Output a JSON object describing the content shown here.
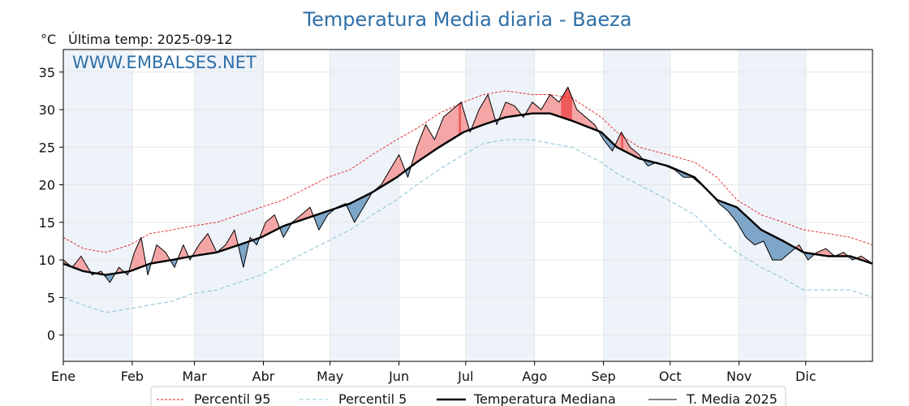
{
  "chart_data": {
    "type": "line",
    "title": "Temperatura Media diaria - Baeza",
    "ylabel": "°C",
    "subtitle": "Última temp: 2025-09-12",
    "watermark": "WWW.EMBALSES.NET",
    "ylim": [
      -3.5,
      38
    ],
    "yticks": [
      "0",
      "5",
      "10",
      "15",
      "20",
      "25",
      "30",
      "35"
    ],
    "grid": true,
    "months": [
      "Ene",
      "Feb",
      "Mar",
      "Abr",
      "May",
      "Jun",
      "Jul",
      "Ago",
      "Sep",
      "Oct",
      "Nov",
      "Dic"
    ],
    "legend_placement": "bottom-center",
    "colors": {
      "p95": "#e31a1c",
      "p5": "#8fc6d8",
      "median": "#000000",
      "t2025": "#000000",
      "above_fill": "#f4a6a6",
      "above_fill_strong": "#ef5a5a",
      "below_fill": "#7ea6c8",
      "below_fill_strong": "#2f74ae",
      "band_shade": "#eef3f9"
    },
    "series": [
      {
        "name": "Percentil 95",
        "key": "p95",
        "points": [
          [
            1,
            13
          ],
          [
            10,
            11.5
          ],
          [
            20,
            11
          ],
          [
            31,
            12
          ],
          [
            40,
            13.5
          ],
          [
            50,
            14
          ],
          [
            59,
            14.5
          ],
          [
            70,
            15
          ],
          [
            80,
            16
          ],
          [
            90,
            17
          ],
          [
            100,
            18
          ],
          [
            110,
            19.5
          ],
          [
            120,
            21
          ],
          [
            130,
            22
          ],
          [
            140,
            24
          ],
          [
            151,
            26
          ],
          [
            160,
            27.5
          ],
          [
            170,
            29.5
          ],
          [
            181,
            31
          ],
          [
            190,
            32
          ],
          [
            200,
            32.5
          ],
          [
            212,
            32
          ],
          [
            220,
            32
          ],
          [
            230,
            31.5
          ],
          [
            243,
            29
          ],
          [
            250,
            27
          ],
          [
            260,
            25
          ],
          [
            273,
            24
          ],
          [
            285,
            23
          ],
          [
            295,
            21
          ],
          [
            304,
            18
          ],
          [
            315,
            16
          ],
          [
            325,
            15
          ],
          [
            334,
            14
          ],
          [
            345,
            13.5
          ],
          [
            355,
            13
          ],
          [
            365,
            12
          ]
        ]
      },
      {
        "name": "Percentil 5",
        "key": "p5",
        "points": [
          [
            1,
            5
          ],
          [
            10,
            4
          ],
          [
            20,
            3
          ],
          [
            31,
            3.5
          ],
          [
            40,
            4
          ],
          [
            50,
            4.5
          ],
          [
            59,
            5.5
          ],
          [
            70,
            6
          ],
          [
            80,
            7
          ],
          [
            90,
            8
          ],
          [
            100,
            9.5
          ],
          [
            110,
            11
          ],
          [
            120,
            12.5
          ],
          [
            130,
            14
          ],
          [
            140,
            16
          ],
          [
            151,
            18
          ],
          [
            160,
            20
          ],
          [
            170,
            22
          ],
          [
            181,
            24
          ],
          [
            190,
            25.5
          ],
          [
            200,
            26
          ],
          [
            212,
            26
          ],
          [
            220,
            25.5
          ],
          [
            230,
            25
          ],
          [
            243,
            23
          ],
          [
            250,
            21.5
          ],
          [
            260,
            20
          ],
          [
            273,
            18
          ],
          [
            285,
            16
          ],
          [
            295,
            13
          ],
          [
            304,
            11
          ],
          [
            315,
            9
          ],
          [
            325,
            7.5
          ],
          [
            334,
            6
          ],
          [
            345,
            6
          ],
          [
            355,
            6
          ],
          [
            365,
            5
          ]
        ]
      },
      {
        "name": "Temperatura Mediana",
        "key": "median",
        "points": [
          [
            1,
            9.5
          ],
          [
            10,
            8.5
          ],
          [
            20,
            8
          ],
          [
            31,
            8.5
          ],
          [
            40,
            9.5
          ],
          [
            50,
            10
          ],
          [
            59,
            10.5
          ],
          [
            70,
            11
          ],
          [
            80,
            12
          ],
          [
            90,
            13
          ],
          [
            100,
            14.5
          ],
          [
            110,
            15.5
          ],
          [
            120,
            16.5
          ],
          [
            130,
            17.5
          ],
          [
            140,
            19
          ],
          [
            151,
            21
          ],
          [
            160,
            23
          ],
          [
            170,
            25
          ],
          [
            181,
            27
          ],
          [
            190,
            28
          ],
          [
            200,
            29
          ],
          [
            212,
            29.5
          ],
          [
            220,
            29.5
          ],
          [
            230,
            28.5
          ],
          [
            243,
            27
          ],
          [
            250,
            25
          ],
          [
            260,
            23.5
          ],
          [
            273,
            22.5
          ],
          [
            285,
            21
          ],
          [
            295,
            18
          ],
          [
            304,
            17
          ],
          [
            315,
            14
          ],
          [
            325,
            12.5
          ],
          [
            334,
            11
          ],
          [
            345,
            10.5
          ],
          [
            355,
            10.5
          ],
          [
            365,
            9.5
          ]
        ]
      },
      {
        "name": "T. Media 2025",
        "key": "t2025",
        "points": [
          [
            1,
            10
          ],
          [
            5,
            9
          ],
          [
            9,
            10.5
          ],
          [
            14,
            8
          ],
          [
            18,
            8.5
          ],
          [
            22,
            7
          ],
          [
            26,
            9
          ],
          [
            30,
            8
          ],
          [
            33,
            11
          ],
          [
            36,
            13
          ],
          [
            39,
            8
          ],
          [
            43,
            12
          ],
          [
            47,
            11
          ],
          [
            51,
            9
          ],
          [
            55,
            12
          ],
          [
            58,
            10
          ],
          [
            62,
            12
          ],
          [
            66,
            13.5
          ],
          [
            70,
            11
          ],
          [
            74,
            12
          ],
          [
            78,
            14
          ],
          [
            82,
            9
          ],
          [
            85,
            13
          ],
          [
            88,
            12
          ],
          [
            92,
            15
          ],
          [
            96,
            16
          ],
          [
            100,
            13
          ],
          [
            104,
            15
          ],
          [
            108,
            16
          ],
          [
            112,
            17
          ],
          [
            116,
            14
          ],
          [
            120,
            16
          ],
          [
            124,
            17
          ],
          [
            128,
            17.5
          ],
          [
            132,
            15
          ],
          [
            136,
            17
          ],
          [
            140,
            19
          ],
          [
            144,
            20
          ],
          [
            148,
            22
          ],
          [
            152,
            24
          ],
          [
            156,
            21
          ],
          [
            160,
            25
          ],
          [
            164,
            28
          ],
          [
            168,
            26
          ],
          [
            172,
            29
          ],
          [
            176,
            30
          ],
          [
            180,
            31
          ],
          [
            184,
            27
          ],
          [
            188,
            30
          ],
          [
            192,
            32
          ],
          [
            196,
            28
          ],
          [
            200,
            31
          ],
          [
            204,
            30.5
          ],
          [
            208,
            29
          ],
          [
            212,
            31
          ],
          [
            216,
            30
          ],
          [
            220,
            32
          ],
          [
            224,
            31
          ],
          [
            228,
            33
          ],
          [
            232,
            30
          ],
          [
            236,
            29
          ],
          [
            240,
            28
          ],
          [
            244,
            26
          ],
          [
            248,
            24.5
          ],
          [
            252,
            27
          ],
          [
            256,
            25
          ],
          [
            260,
            24
          ],
          [
            264,
            22.5
          ],
          [
            268,
            23
          ],
          [
            272,
            22.5
          ],
          [
            276,
            22
          ],
          [
            280,
            21
          ],
          [
            284,
            21
          ],
          [
            288,
            20
          ],
          [
            292,
            19
          ],
          [
            296,
            17.5
          ],
          [
            300,
            16.5
          ],
          [
            304,
            15
          ],
          [
            308,
            13
          ],
          [
            312,
            12
          ],
          [
            316,
            12.5
          ],
          [
            320,
            10
          ],
          [
            324,
            10
          ],
          [
            328,
            11
          ],
          [
            332,
            12
          ],
          [
            336,
            10
          ],
          [
            340,
            11
          ],
          [
            344,
            11.5
          ],
          [
            348,
            10.5
          ],
          [
            352,
            11
          ],
          [
            356,
            10
          ],
          [
            360,
            10.5
          ],
          [
            365,
            9.5
          ]
        ]
      }
    ],
    "legend": [
      {
        "label": "Percentil 95",
        "key": "p95"
      },
      {
        "label": "Percentil 5",
        "key": "p5"
      },
      {
        "label": "Temperatura Mediana",
        "key": "median"
      },
      {
        "label": "T. Media 2025",
        "key": "t2025"
      }
    ]
  }
}
